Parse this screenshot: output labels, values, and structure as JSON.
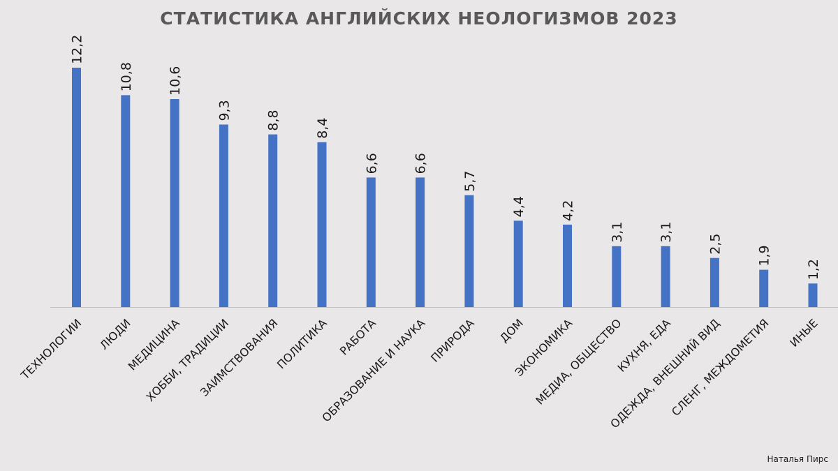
{
  "author": "Наталья Пирс",
  "chart_data": {
    "type": "bar",
    "title": "СТАТИСТИКА АНГЛИЙСКИХ НЕОЛОГИЗМОВ 2023",
    "xlabel": "",
    "ylabel": "",
    "ylim": [
      0,
      12.2
    ],
    "grid": false,
    "legend": "none",
    "bar_color": "#4472c4",
    "axis_color": "#bfbfbf",
    "label_color": "#1a1a1a",
    "categories": [
      "ТЕХНОЛОГИИ",
      "ЛЮДИ",
      "МЕДИЦИНА",
      "ХОББИ, ТРАДИЦИИ",
      "ЗАИМСТВОВАНИЯ",
      "ПОЛИТИКА",
      "РАБОТА",
      "ОБРАЗОВАНИЕ И НАУКА",
      "ПРИРОДА",
      "ДОМ",
      "ЭКОНОМИКА",
      "МЕДИА, ОБЩЕСТВО",
      "КУХНЯ, ЕДА",
      "ОДЕЖДА, ВНЕШНИЙ ВИД",
      "СЛЕНГ, МЕЖДОМЕТИЯ",
      "ИНЫЕ"
    ],
    "values": [
      12.2,
      10.8,
      10.6,
      9.3,
      8.8,
      8.4,
      6.6,
      6.6,
      5.7,
      4.4,
      4.2,
      3.1,
      3.1,
      2.5,
      1.9,
      1.2
    ],
    "value_labels": [
      "12,2",
      "10,8",
      "10,6",
      "9,3",
      "8,8",
      "8,4",
      "6,6",
      "6,6",
      "5,7",
      "4,4",
      "4,2",
      "3,1",
      "3,1",
      "2,5",
      "1,9",
      "1,2"
    ]
  }
}
